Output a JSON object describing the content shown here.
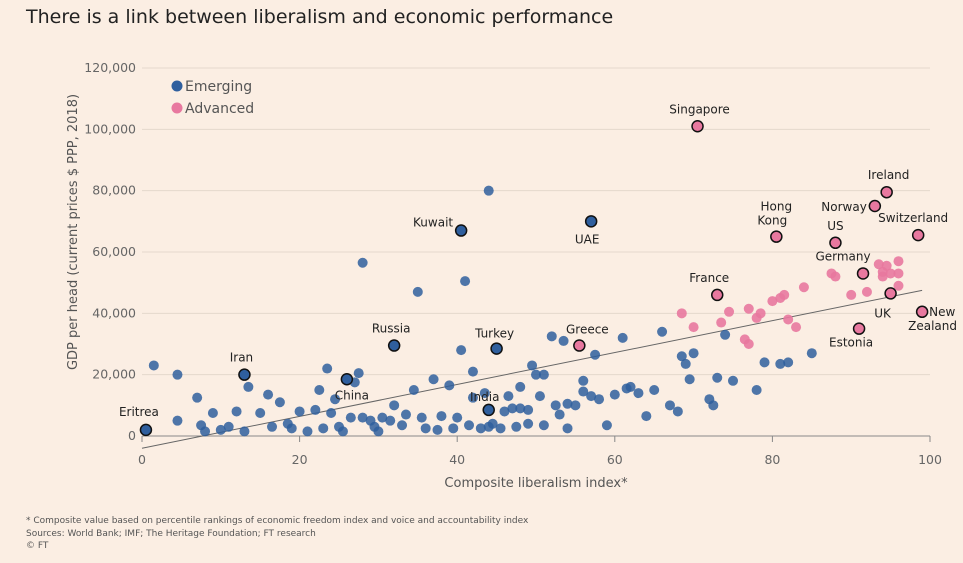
{
  "title": "There is a link between liberalism and economic performance",
  "footnote": "* Composite value based on percentile rankings of economic freedom index and voice and accountability index",
  "sources": "Sources: World Bank; IMF; The Heritage Foundation; FT research",
  "credit": "© FT",
  "colors": {
    "emerging": "#2f5f9e",
    "advanced": "#e8789f",
    "background": "#fbeee3",
    "grid": "#e4d8cc",
    "trend": "#666666"
  },
  "chart_data": {
    "type": "scatter",
    "xlabel": "Composite liberalism index*",
    "ylabel": "GDP per head (current prices $ PPP, 2018)",
    "xlim": [
      0,
      100
    ],
    "ylim": [
      0,
      120000
    ],
    "x_ticks": [
      0,
      20,
      40,
      60,
      80,
      100
    ],
    "x_tick_labels": [
      "0",
      "20",
      "40",
      "60",
      "80",
      "100"
    ],
    "y_ticks": [
      0,
      20000,
      40000,
      60000,
      80000,
      100000,
      120000
    ],
    "y_tick_labels": [
      "0",
      "20,000",
      "40,000",
      "60,000",
      "80,000",
      "100,000",
      "120,000"
    ],
    "legend": [
      {
        "name": "Emerging",
        "color": "#2f5f9e"
      },
      {
        "name": "Advanced",
        "color": "#e8789f"
      }
    ],
    "legend_position": "top-left",
    "grid": "horizontal",
    "trendline": {
      "x": [
        0,
        99
      ],
      "y": [
        -4000,
        47500
      ]
    },
    "labelled_points": [
      {
        "label": "Eritrea",
        "x": 0.5,
        "y": 2000,
        "group": "Emerging"
      },
      {
        "label": "Iran",
        "x": 13,
        "y": 20000,
        "group": "Emerging"
      },
      {
        "label": "China",
        "x": 26,
        "y": 18500,
        "group": "Emerging"
      },
      {
        "label": "Russia",
        "x": 32,
        "y": 29500,
        "group": "Emerging"
      },
      {
        "label": "Kuwait",
        "x": 40.5,
        "y": 67000,
        "group": "Emerging"
      },
      {
        "label": "India",
        "x": 44,
        "y": 8500,
        "group": "Emerging"
      },
      {
        "label": "Turkey",
        "x": 45,
        "y": 28500,
        "group": "Emerging"
      },
      {
        "label": "UAE",
        "x": 57,
        "y": 70000,
        "group": "Emerging"
      },
      {
        "label": "Greece",
        "x": 55.5,
        "y": 29500,
        "group": "Advanced"
      },
      {
        "label": "Singapore",
        "x": 70.5,
        "y": 101000,
        "group": "Advanced"
      },
      {
        "label": "France",
        "x": 73,
        "y": 46000,
        "group": "Advanced"
      },
      {
        "label": "Hong Kong",
        "x": 80.5,
        "y": 65000,
        "group": "Advanced"
      },
      {
        "label": "US",
        "x": 88,
        "y": 63000,
        "group": "Advanced"
      },
      {
        "label": "Germany",
        "x": 91.5,
        "y": 53000,
        "group": "Advanced"
      },
      {
        "label": "Estonia",
        "x": 91,
        "y": 35000,
        "group": "Advanced"
      },
      {
        "label": "Ireland",
        "x": 94.5,
        "y": 79500,
        "group": "Advanced"
      },
      {
        "label": "Norway",
        "x": 93,
        "y": 75000,
        "group": "Advanced"
      },
      {
        "label": "Switzerland",
        "x": 98.5,
        "y": 65500,
        "group": "Advanced"
      },
      {
        "label": "UK",
        "x": 95,
        "y": 46500,
        "group": "Advanced"
      },
      {
        "label": "New Zealand",
        "x": 99,
        "y": 40500,
        "group": "Advanced"
      }
    ],
    "series": [
      {
        "name": "Emerging",
        "points": [
          [
            1.5,
            23000
          ],
          [
            4.5,
            20000
          ],
          [
            4.5,
            5000
          ],
          [
            7,
            12500
          ],
          [
            7.5,
            3500
          ],
          [
            8,
            1500
          ],
          [
            9,
            7500
          ],
          [
            10,
            2000
          ],
          [
            11,
            3000
          ],
          [
            12,
            8000
          ],
          [
            13,
            1500
          ],
          [
            13.5,
            16000
          ],
          [
            15,
            7500
          ],
          [
            16,
            13500
          ],
          [
            16.5,
            3000
          ],
          [
            17.5,
            11000
          ],
          [
            18.5,
            4000
          ],
          [
            19,
            2500
          ],
          [
            20,
            8000
          ],
          [
            21,
            1500
          ],
          [
            22,
            8500
          ],
          [
            22.5,
            15000
          ],
          [
            23,
            2500
          ],
          [
            23.5,
            22000
          ],
          [
            24,
            7500
          ],
          [
            24.5,
            12000
          ],
          [
            25,
            3000
          ],
          [
            25.5,
            1500
          ],
          [
            26.5,
            6000
          ],
          [
            27.5,
            20500
          ],
          [
            28,
            56500
          ],
          [
            27,
            17500
          ],
          [
            28,
            6000
          ],
          [
            29,
            5000
          ],
          [
            29.5,
            3000
          ],
          [
            30,
            1500
          ],
          [
            30.5,
            6000
          ],
          [
            31.5,
            5000
          ],
          [
            32,
            10000
          ],
          [
            33,
            3500
          ],
          [
            33.5,
            7000
          ],
          [
            34.5,
            15000
          ],
          [
            35,
            47000
          ],
          [
            35.5,
            6000
          ],
          [
            36,
            2500
          ],
          [
            37,
            18500
          ],
          [
            37.5,
            2000
          ],
          [
            38,
            6500
          ],
          [
            39,
            16500
          ],
          [
            39.5,
            2500
          ],
          [
            40,
            6000
          ],
          [
            40.5,
            28000
          ],
          [
            41,
            50500
          ],
          [
            41.5,
            3500
          ],
          [
            42,
            12500
          ],
          [
            42,
            21000
          ],
          [
            43,
            2500
          ],
          [
            43.5,
            14000
          ],
          [
            44,
            80000
          ],
          [
            44,
            3000
          ],
          [
            44.5,
            4000
          ],
          [
            45.5,
            2500
          ],
          [
            46,
            8000
          ],
          [
            46.5,
            13000
          ],
          [
            47,
            9000
          ],
          [
            47.5,
            3000
          ],
          [
            48,
            9000
          ],
          [
            48,
            16000
          ],
          [
            49,
            4000
          ],
          [
            49,
            8500
          ],
          [
            49.5,
            23000
          ],
          [
            50,
            20000
          ],
          [
            50.5,
            13000
          ],
          [
            51,
            3500
          ],
          [
            51,
            20000
          ],
          [
            52,
            32500
          ],
          [
            52.5,
            10000
          ],
          [
            53,
            7000
          ],
          [
            53.5,
            31000
          ],
          [
            54,
            10500
          ],
          [
            54,
            2500
          ],
          [
            55,
            10000
          ],
          [
            56,
            14500
          ],
          [
            56,
            18000
          ],
          [
            57,
            13000
          ],
          [
            57.5,
            26500
          ],
          [
            58,
            12000
          ],
          [
            59,
            3500
          ],
          [
            60,
            13500
          ],
          [
            61,
            32000
          ],
          [
            61.5,
            15500
          ],
          [
            62,
            16000
          ],
          [
            63,
            14000
          ],
          [
            64,
            6500
          ],
          [
            65,
            15000
          ],
          [
            66,
            34000
          ],
          [
            67,
            10000
          ],
          [
            68,
            8000
          ],
          [
            68.5,
            26000
          ],
          [
            69,
            23500
          ],
          [
            69.5,
            18500
          ],
          [
            70,
            27000
          ],
          [
            72,
            12000
          ],
          [
            72.5,
            10000
          ],
          [
            73,
            19000
          ],
          [
            74,
            33000
          ],
          [
            75,
            18000
          ],
          [
            78,
            15000
          ],
          [
            79,
            24000
          ],
          [
            81,
            23500
          ],
          [
            82,
            24000
          ],
          [
            85,
            27000
          ]
        ]
      },
      {
        "name": "Advanced",
        "points": [
          [
            68.5,
            40000
          ],
          [
            70,
            35500
          ],
          [
            73.5,
            37000
          ],
          [
            74.5,
            40500
          ],
          [
            76.5,
            31500
          ],
          [
            77,
            30000
          ],
          [
            77,
            41500
          ],
          [
            78,
            38500
          ],
          [
            78.5,
            40000
          ],
          [
            80,
            44000
          ],
          [
            81,
            45000
          ],
          [
            81.5,
            46000
          ],
          [
            82,
            38000
          ],
          [
            83,
            35500
          ],
          [
            84,
            48500
          ],
          [
            87.5,
            53000
          ],
          [
            88,
            52000
          ],
          [
            90,
            46000
          ],
          [
            92,
            47000
          ],
          [
            93.5,
            56000
          ],
          [
            94,
            53500
          ],
          [
            94,
            52000
          ],
          [
            94.5,
            55500
          ],
          [
            95,
            53000
          ],
          [
            96,
            57000
          ],
          [
            96,
            53000
          ],
          [
            96,
            49000
          ]
        ]
      }
    ]
  }
}
